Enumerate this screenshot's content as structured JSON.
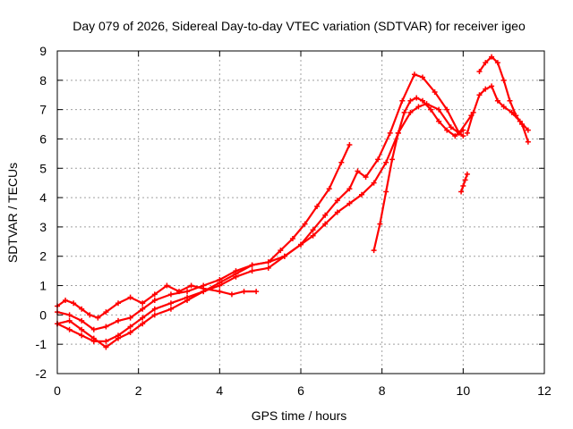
{
  "chart_data": {
    "type": "line",
    "title": "Day 079 of 2026, Sidereal Day-to-day VTEC variation (SDTVAR) for receiver igeo",
    "xlabel": "GPS time / hours",
    "ylabel": "SDTVAR / TECUs",
    "xlim": [
      0,
      12
    ],
    "ylim": [
      -2,
      9
    ],
    "xticks": [
      "0",
      "2",
      "4",
      "6",
      "8",
      "10",
      "12"
    ],
    "yticks": [
      "-2",
      "-1",
      "0",
      "1",
      "2",
      "3",
      "4",
      "5",
      "6",
      "7",
      "8",
      "9"
    ],
    "grid": true,
    "color": "#ff0000",
    "series": [
      {
        "x": [
          0.0,
          0.2,
          0.4,
          0.6,
          0.8,
          1.0,
          1.2,
          1.5,
          1.8,
          2.1,
          2.4,
          2.7,
          3.0,
          3.3,
          3.6,
          4.0,
          4.3,
          4.6,
          4.9
        ],
        "y": [
          0.3,
          0.5,
          0.4,
          0.2,
          0.0,
          -0.1,
          0.1,
          0.4,
          0.6,
          0.4,
          0.7,
          1.0,
          0.8,
          1.0,
          0.9,
          0.8,
          0.7,
          0.8,
          0.8
        ]
      },
      {
        "x": [
          0.0,
          0.3,
          0.6,
          0.9,
          1.2,
          1.5,
          1.8,
          2.1,
          2.4,
          2.8,
          3.2,
          3.6,
          4.0,
          4.4,
          4.8,
          5.2,
          5.5,
          5.8,
          6.1,
          6.4,
          6.7,
          7.0,
          7.2
        ],
        "y": [
          0.1,
          0.0,
          -0.2,
          -0.5,
          -0.4,
          -0.2,
          -0.1,
          0.2,
          0.5,
          0.7,
          0.8,
          1.0,
          1.2,
          1.5,
          1.7,
          1.8,
          2.2,
          2.6,
          3.1,
          3.7,
          4.3,
          5.2,
          5.8
        ]
      },
      {
        "x": [
          0.0,
          0.3,
          0.6,
          0.9,
          1.2,
          1.5,
          1.8,
          2.1,
          2.4,
          2.8,
          3.2,
          3.6,
          4.0,
          4.4,
          4.8,
          5.2,
          5.6,
          6.0,
          6.3,
          6.6,
          6.9,
          7.2,
          7.5,
          7.8,
          8.1,
          8.4,
          8.7,
          8.9,
          9.1,
          9.4,
          9.7,
          10.0
        ],
        "y": [
          -0.3,
          -0.2,
          -0.5,
          -0.8,
          -1.1,
          -0.8,
          -0.6,
          -0.3,
          0.0,
          0.2,
          0.5,
          0.8,
          1.0,
          1.3,
          1.5,
          1.6,
          2.0,
          2.4,
          2.7,
          3.1,
          3.5,
          3.8,
          4.1,
          4.5,
          5.2,
          6.2,
          6.9,
          7.1,
          7.2,
          7.0,
          6.4,
          6.1
        ]
      },
      {
        "x": [
          0.0,
          0.3,
          0.6,
          0.9,
          1.2,
          1.5,
          1.8,
          2.1,
          2.4,
          2.8,
          3.2,
          3.6,
          4.0,
          4.4,
          4.8,
          5.2,
          5.6,
          6.0,
          6.3,
          6.6,
          6.9,
          7.2,
          7.4,
          7.6,
          7.9,
          8.2,
          8.5,
          8.8,
          9.0,
          9.3,
          9.6,
          9.9,
          10.2
        ],
        "y": [
          -0.3,
          -0.5,
          -0.7,
          -0.9,
          -0.9,
          -0.7,
          -0.4,
          -0.1,
          0.2,
          0.4,
          0.6,
          0.8,
          1.1,
          1.4,
          1.7,
          1.8,
          2.0,
          2.4,
          2.9,
          3.4,
          3.9,
          4.3,
          4.9,
          4.7,
          5.3,
          6.2,
          7.3,
          8.2,
          8.1,
          7.6,
          7.0,
          6.2,
          6.8
        ]
      },
      {
        "x": [
          7.8,
          7.95,
          8.1,
          8.25,
          8.4,
          8.55,
          8.7,
          8.85,
          9.0,
          9.2,
          9.4,
          9.6,
          9.8,
          10.0
        ],
        "y": [
          2.2,
          3.1,
          4.2,
          5.3,
          6.2,
          6.9,
          7.3,
          7.4,
          7.3,
          7.0,
          6.6,
          6.3,
          6.1,
          6.3
        ]
      },
      {
        "x": [
          10.1,
          10.25,
          10.4,
          10.55,
          10.7,
          10.85,
          11.0,
          11.2,
          11.4,
          11.6
        ],
        "y": [
          6.2,
          6.9,
          7.5,
          7.7,
          7.8,
          7.3,
          7.1,
          6.9,
          6.6,
          6.3
        ]
      },
      {
        "x": [
          10.4,
          10.55,
          10.7,
          10.85,
          11.0,
          11.15,
          11.3,
          11.45,
          11.6
        ],
        "y": [
          8.3,
          8.6,
          8.8,
          8.6,
          8.0,
          7.3,
          6.8,
          6.5,
          5.9
        ]
      },
      {
        "x": [
          9.95,
          10.0,
          10.05,
          10.1
        ],
        "y": [
          4.2,
          4.4,
          4.6,
          4.8
        ]
      }
    ]
  }
}
